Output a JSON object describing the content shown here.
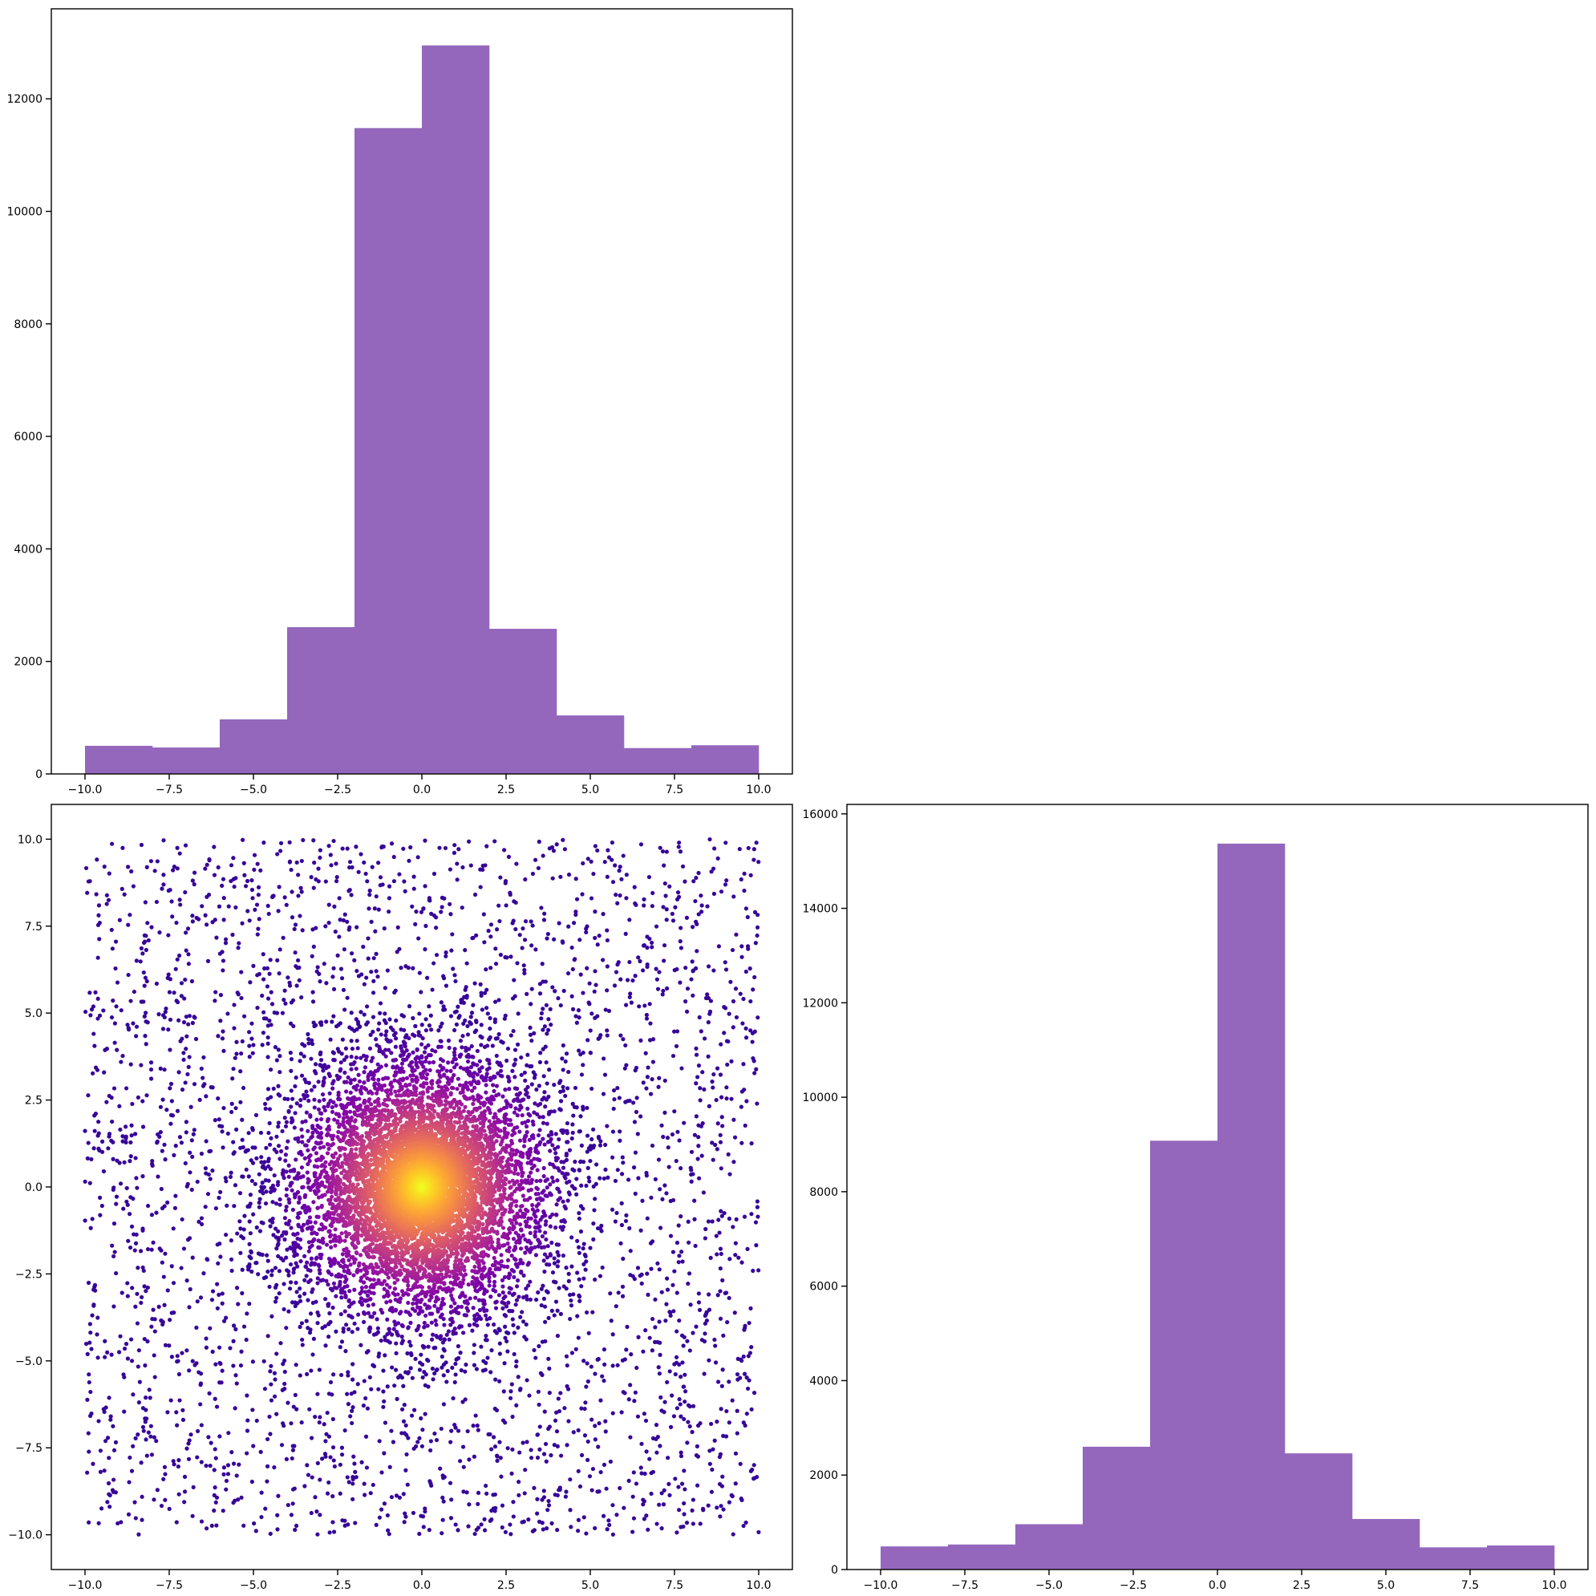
{
  "figure": {
    "layout": "2x2 corner plot (lower-left, upper-left histogram, lower-right histogram)"
  },
  "chart_data": [
    {
      "id": "hist_x",
      "type": "bar",
      "title": "",
      "xlabel": "",
      "ylabel": "",
      "color": "#9467bd",
      "bin_edges": [
        -10,
        -8,
        -6,
        -4,
        -2,
        0,
        2,
        4,
        6,
        8,
        10
      ],
      "values": [
        500,
        470,
        970,
        2610,
        11480,
        12950,
        2580,
        1040,
        460,
        510
      ],
      "xlim": [
        -11,
        11
      ],
      "ylim": [
        0,
        13600
      ],
      "xticks": [
        -10,
        -7.5,
        -5,
        -2.5,
        0,
        2.5,
        5,
        7.5,
        10
      ],
      "xtick_labels": [
        "−10.0",
        "−7.5",
        "−5.0",
        "−2.5",
        "0.0",
        "2.5",
        "5.0",
        "7.5",
        "10.0"
      ],
      "yticks": [
        0,
        2000,
        4000,
        6000,
        8000,
        10000,
        12000
      ],
      "ytick_labels": [
        "0",
        "2000",
        "4000",
        "6000",
        "8000",
        "10000",
        "12000"
      ],
      "grid": false
    },
    {
      "id": "scatter_xy",
      "type": "scatter",
      "title": "",
      "xlabel": "",
      "ylabel": "",
      "colormap": "plasma",
      "description_of_data": "uniform background over [-10,10]x[-10,10] plus dense radial cluster centred at (0,0), radius ~5.5, coloured by density (center yellow, edge indigo)",
      "n_background": 3200,
      "n_cluster": 9000,
      "cluster_center": [
        0,
        0
      ],
      "cluster_radius": 5.5,
      "background_range": [
        -10,
        10
      ],
      "colors": {
        "low": "#2a0593",
        "mid": "#b12a90",
        "high": "#f0f921"
      },
      "xlim": [
        -11,
        11
      ],
      "ylim": [
        -11,
        11
      ],
      "xticks": [
        -10,
        -7.5,
        -5,
        -2.5,
        0,
        2.5,
        5,
        7.5,
        10
      ],
      "xtick_labels": [
        "−10.0",
        "−7.5",
        "−5.0",
        "−2.5",
        "0.0",
        "2.5",
        "5.0",
        "7.5",
        "10.0"
      ],
      "yticks": [
        -10,
        -7.5,
        -5,
        -2.5,
        0,
        2.5,
        5,
        7.5,
        10
      ],
      "ytick_labels": [
        "−10.0",
        "−7.5",
        "−5.0",
        "−2.5",
        "0.0",
        "2.5",
        "5.0",
        "7.5",
        "10.0"
      ],
      "grid": false
    },
    {
      "id": "hist_y",
      "type": "bar",
      "title": "",
      "xlabel": "",
      "ylabel": "",
      "color": "#9467bd",
      "bin_edges": [
        -10,
        -8,
        -6,
        -4,
        -2,
        0,
        2,
        4,
        6,
        8,
        10
      ],
      "values": [
        490,
        530,
        960,
        2600,
        9080,
        15370,
        2460,
        1070,
        470,
        510
      ],
      "xlim": [
        -11,
        11
      ],
      "ylim": [
        0,
        16200
      ],
      "xticks": [
        -10,
        -7.5,
        -5,
        -2.5,
        0,
        2.5,
        5,
        7.5,
        10
      ],
      "xtick_labels": [
        "−10.0",
        "−7.5",
        "−5.0",
        "−2.5",
        "0.0",
        "2.5",
        "5.0",
        "7.5",
        "10.0"
      ],
      "yticks": [
        0,
        2000,
        4000,
        6000,
        8000,
        10000,
        12000,
        14000,
        16000
      ],
      "ytick_labels": [
        "0",
        "2000",
        "4000",
        "6000",
        "8000",
        "10000",
        "12000",
        "14000",
        "16000"
      ],
      "grid": false
    }
  ]
}
